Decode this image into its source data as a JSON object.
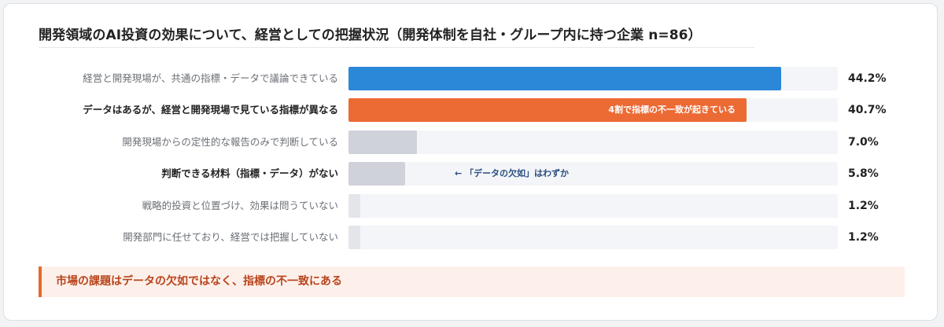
{
  "title": "開発領域のAI投資の効果について、経営としての把握状況（開発体制を自社・グループ内に持つ企業 n=86）",
  "callout": "市場の課題はデータの欠如ではなく、指標の不一致にある",
  "colors": {
    "highlight_blue": "#2b87d8",
    "highlight_orange": "#ec6a34",
    "muted_bar": "#cfd2d9",
    "track": "#f3f5f8",
    "callout_accent": "#e8672e"
  },
  "chart_data": {
    "type": "bar",
    "orientation": "horizontal",
    "title": "開発領域のAI投資の効果について、経営としての把握状況（開発体制を自社・グループ内に持つ企業 n=86）",
    "xlim": [
      0,
      50
    ],
    "unit": "%",
    "categories": [
      "経営と開発現場が、共通の指標・データで議論できている",
      "データはあるが、経営と開発現場で見ている指標が異なる",
      "開発現場からの定性的な報告のみで判断している",
      "判断できる材料（指標・データ）がない",
      "戦略的投資と位置づけ、効果は問うていない",
      "開発部門に任せており、経営では把握していない"
    ],
    "values": [
      44.2,
      40.7,
      7.0,
      5.8,
      1.2,
      1.2
    ],
    "value_labels": [
      "44.2%",
      "40.7%",
      "7.0%",
      "5.8%",
      "1.2%",
      "1.2%"
    ],
    "bar_colors": [
      "#2b87d8",
      "#ec6a34",
      "#cfd2d9",
      "#cfd2d9",
      "#e3e5ea",
      "#e3e5ea"
    ],
    "bold_labels": [
      false,
      true,
      false,
      true,
      false,
      false
    ],
    "annotations": [
      {
        "index": 1,
        "text": "4割で指標の不一致が起きている",
        "placement": "inside-bar-end"
      },
      {
        "index": 3,
        "text": "← 「データの欠如」はわずか",
        "placement": "after-bar"
      }
    ],
    "grid": false,
    "legend": "none"
  }
}
